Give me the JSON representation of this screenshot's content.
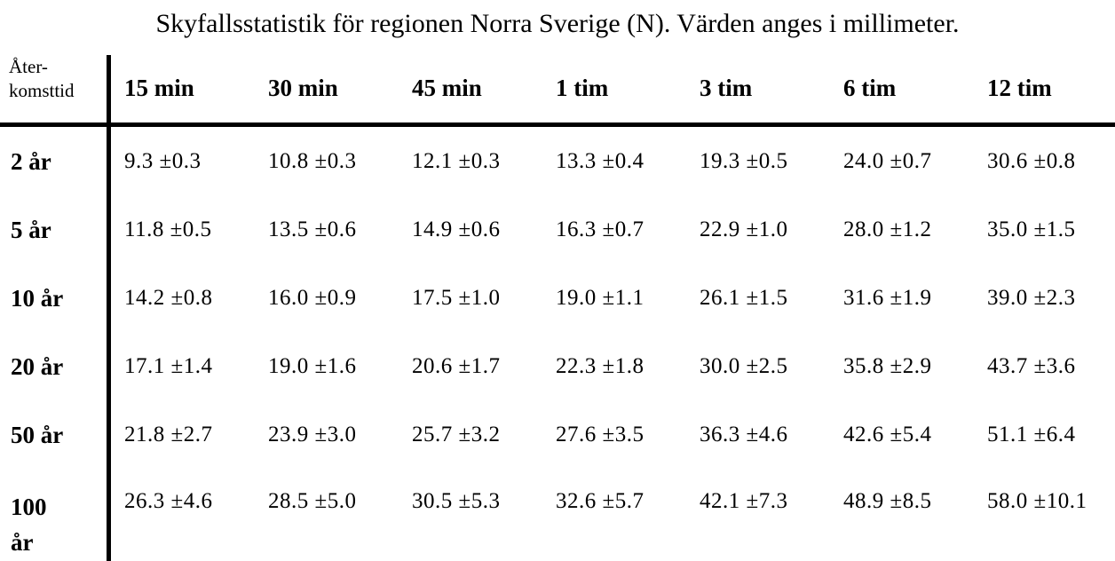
{
  "chart_data": {
    "type": "table",
    "title": "Skyfallsstatistik för regionen Norra Sverige (N). Värden anges i millimeter.",
    "corner_header": [
      "Åter-",
      "komsttid"
    ],
    "columns": [
      "15 min",
      "30 min",
      "45 min",
      "1 tim",
      "3 tim",
      "6 tim",
      "12 tim"
    ],
    "rows": [
      {
        "label": "2 år",
        "values": [
          "9.3 ±0.3",
          "10.8 ±0.3",
          "12.1 ±0.3",
          "13.3 ±0.4",
          "19.3 ±0.5",
          "24.0 ±0.7",
          "30.6 ±0.8"
        ]
      },
      {
        "label": "5 år",
        "values": [
          "11.8 ±0.5",
          "13.5 ±0.6",
          "14.9 ±0.6",
          "16.3 ±0.7",
          "22.9 ±1.0",
          "28.0 ±1.2",
          "35.0 ±1.5"
        ]
      },
      {
        "label": "10 år",
        "values": [
          "14.2 ±0.8",
          "16.0 ±0.9",
          "17.5 ±1.0",
          "19.0 ±1.1",
          "26.1 ±1.5",
          "31.6 ±1.9",
          "39.0 ±2.3"
        ]
      },
      {
        "label": "20 år",
        "values": [
          "17.1 ±1.4",
          "19.0 ±1.6",
          "20.6 ±1.7",
          "22.3 ±1.8",
          "30.0 ±2.5",
          "35.8 ±2.9",
          "43.7 ±3.6"
        ]
      },
      {
        "label": "50 år",
        "values": [
          "21.8 ±2.7",
          "23.9 ±3.0",
          "25.7 ±3.2",
          "27.6 ±3.5",
          "36.3 ±4.6",
          "42.6 ±5.4",
          "51.1 ±6.4"
        ]
      },
      {
        "label": "100 år",
        "values": [
          "26.3 ±4.6",
          "28.5 ±5.0",
          "30.5 ±5.3",
          "32.6 ±5.7",
          "42.1 ±7.3",
          "48.9 ±8.5",
          "58.0 ±10.1"
        ]
      }
    ],
    "layout": {
      "grid": "off",
      "header_rule": "thick",
      "first_column_rule": "thick"
    }
  },
  "colors": {
    "text": "#000000",
    "background": "#ffffff",
    "rule": "#000000"
  }
}
